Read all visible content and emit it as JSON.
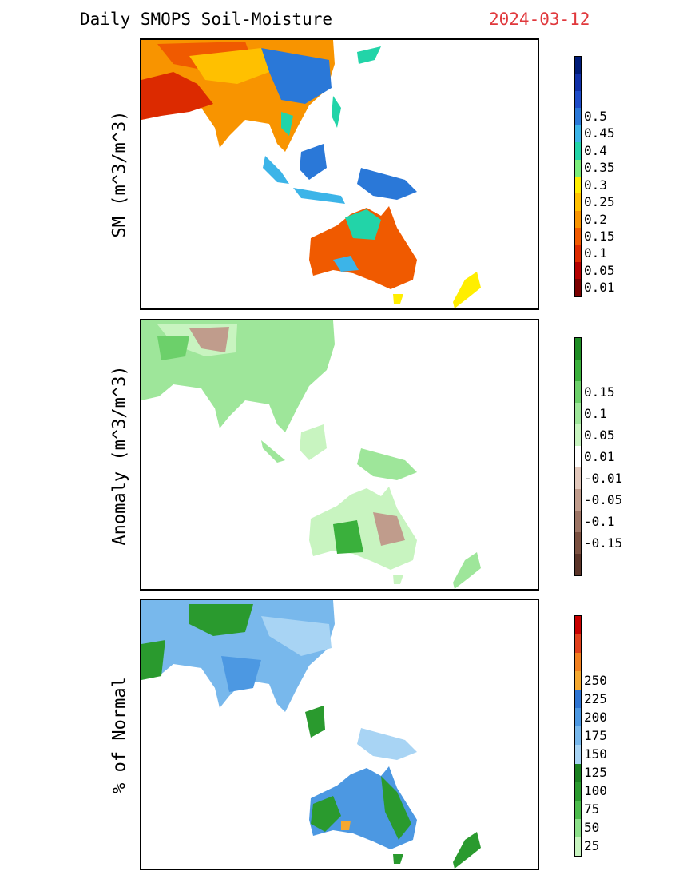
{
  "header": {
    "title": "Daily SMOPS Soil-Moisture",
    "date": "2024-03-12"
  },
  "panels": [
    {
      "ylabel": "SM (m^3/m^3)",
      "colorbar": {
        "colors": [
          "#7a0000",
          "#b40000",
          "#dc2a00",
          "#f05a00",
          "#f89400",
          "#ffc000",
          "#ffee00",
          "#7bee7b",
          "#22d4a8",
          "#3cb4e8",
          "#2a78d8",
          "#1e4cc8",
          "#1030a8",
          "#001c78"
        ],
        "labels": [
          "0.01",
          "0.05",
          "0.1",
          "0.15",
          "0.2",
          "0.25",
          "0.3",
          "0.35",
          "0.4",
          "0.45",
          "0.5"
        ]
      }
    },
    {
      "ylabel": "Anomaly (m^3/m^3)",
      "colorbar": {
        "colors": [
          "#5a3428",
          "#7a5040",
          "#9c7464",
          "#c09c8c",
          "#e2c8bc",
          "#ffffff",
          "#c8f4c0",
          "#9ee69a",
          "#6cd06a",
          "#3ab03c",
          "#1e8c24"
        ],
        "labels": [
          "-0.15",
          "-0.1",
          "-0.05",
          "-0.01",
          "0.01",
          "0.05",
          "0.1",
          "0.15"
        ]
      }
    },
    {
      "ylabel": "% of Normal",
      "colorbar": {
        "colors": [
          "#c8f4c0",
          "#8ce08a",
          "#4cbc4c",
          "#2a9a2e",
          "#1a8020",
          "#a8d4f4",
          "#78b8ec",
          "#4c98e2",
          "#2e74d2",
          "#f4a830",
          "#f08020",
          "#e0401c",
          "#c80000"
        ],
        "labels": [
          "25",
          "50",
          "75",
          "100",
          "125",
          "150",
          "175",
          "200",
          "225",
          "250"
        ]
      }
    }
  ]
}
